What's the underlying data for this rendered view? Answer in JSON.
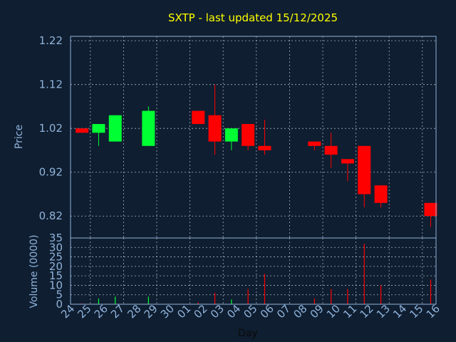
{
  "chart_data": {
    "type": "candlestick",
    "title": "SXTP - last updated 15/12/2025",
    "xlabel": "Day",
    "ylabel": "Price",
    "volume_label": "Volume (0000)",
    "grid": true,
    "colors": {
      "background": "#0f1e30",
      "up": "#00ff33",
      "down": "#ff0000",
      "title": "#ffff00",
      "text": "#8fb3dc"
    },
    "price_ylim": [
      0.77,
      1.23
    ],
    "price_ticks": [
      "1.22",
      "1.12",
      "1.02",
      "0.92",
      "0.82"
    ],
    "volume_ylim": [
      0,
      35
    ],
    "volume_ticks": [
      "35",
      "30",
      "25",
      "20",
      "15",
      "10",
      "5",
      "0"
    ],
    "x_tick_labels": [
      "24",
      "25",
      "26",
      "27",
      "28",
      "29",
      "30",
      "01",
      "02",
      "03",
      "04",
      "05",
      "06",
      "07",
      "08",
      "09",
      "10",
      "11",
      "12",
      "13",
      "14",
      "15",
      "16"
    ],
    "candles": [
      {
        "day": "24",
        "open": 1.02,
        "close": 1.01,
        "high": 1.02,
        "low": 1.01,
        "volume": 0.5
      },
      {
        "day": "25",
        "open": 1.01,
        "close": 1.03,
        "high": 1.03,
        "low": 0.98,
        "volume": 3.0
      },
      {
        "day": "26",
        "open": 0.99,
        "close": 1.05,
        "high": 1.05,
        "low": 0.99,
        "volume": 4.0
      },
      {
        "day": "28",
        "open": 0.98,
        "close": 1.06,
        "high": 1.07,
        "low": 0.98,
        "volume": 4.0
      },
      {
        "day": "01",
        "open": 1.06,
        "close": 1.03,
        "high": 1.06,
        "low": 1.03,
        "volume": 1.0
      },
      {
        "day": "02",
        "open": 1.05,
        "close": 0.99,
        "high": 1.12,
        "low": 0.96,
        "volume": 6.0
      },
      {
        "day": "03",
        "open": 0.99,
        "close": 1.02,
        "high": 1.02,
        "low": 0.97,
        "volume": 2.5
      },
      {
        "day": "04",
        "open": 1.03,
        "close": 0.98,
        "high": 1.03,
        "low": 0.97,
        "volume": 8.0
      },
      {
        "day": "05",
        "open": 0.98,
        "close": 0.97,
        "high": 1.04,
        "low": 0.96,
        "volume": 16.0
      },
      {
        "day": "08",
        "open": 0.99,
        "close": 0.98,
        "high": 0.99,
        "low": 0.97,
        "volume": 3.0
      },
      {
        "day": "09",
        "open": 0.98,
        "close": 0.96,
        "high": 1.01,
        "low": 0.93,
        "volume": 8.0
      },
      {
        "day": "10",
        "open": 0.95,
        "close": 0.94,
        "high": 0.95,
        "low": 0.9,
        "volume": 8.0
      },
      {
        "day": "11",
        "open": 0.98,
        "close": 0.87,
        "high": 0.98,
        "low": 0.84,
        "volume": 32.0
      },
      {
        "day": "12",
        "open": 0.89,
        "close": 0.85,
        "high": 0.89,
        "low": 0.84,
        "volume": 10.0
      },
      {
        "day": "15",
        "open": 0.85,
        "close": 0.82,
        "high": 0.85,
        "low": 0.795,
        "volume": 13.0
      }
    ]
  }
}
